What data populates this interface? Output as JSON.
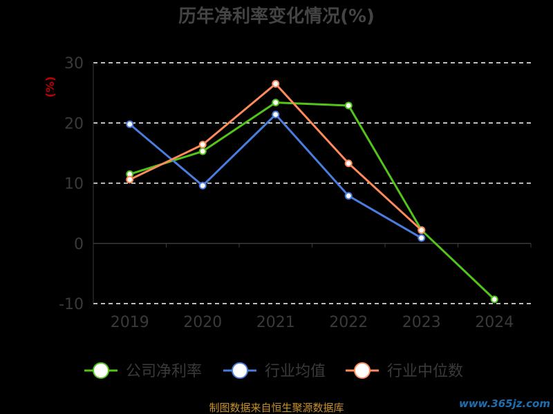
{
  "chart_data": {
    "type": "line",
    "title": "历年净利率变化情况(%)",
    "unit_label": "(%)",
    "categories": [
      "2019",
      "2020",
      "2021",
      "2022",
      "2023",
      "2024"
    ],
    "ylim": [
      -10,
      30
    ],
    "yticks": [
      -10,
      0,
      10,
      20,
      30
    ],
    "grid": true,
    "legend_position": "bottom",
    "series": [
      {
        "name": "公司净利率",
        "color": "#52c41a",
        "values": [
          11.5,
          15.3,
          23.4,
          22.9,
          2.2,
          -9.3
        ]
      },
      {
        "name": "行业均值",
        "color": "#4a7de0",
        "values": [
          19.8,
          9.6,
          21.4,
          7.9,
          0.9,
          null
        ]
      },
      {
        "name": "行业中位数",
        "color": "#ff8a5b",
        "values": [
          10.6,
          16.4,
          26.5,
          13.3,
          2.2,
          null
        ]
      }
    ]
  },
  "footer": {
    "source": "制图数据来自恒生聚源数据库",
    "watermark": "www.365jz.com"
  }
}
